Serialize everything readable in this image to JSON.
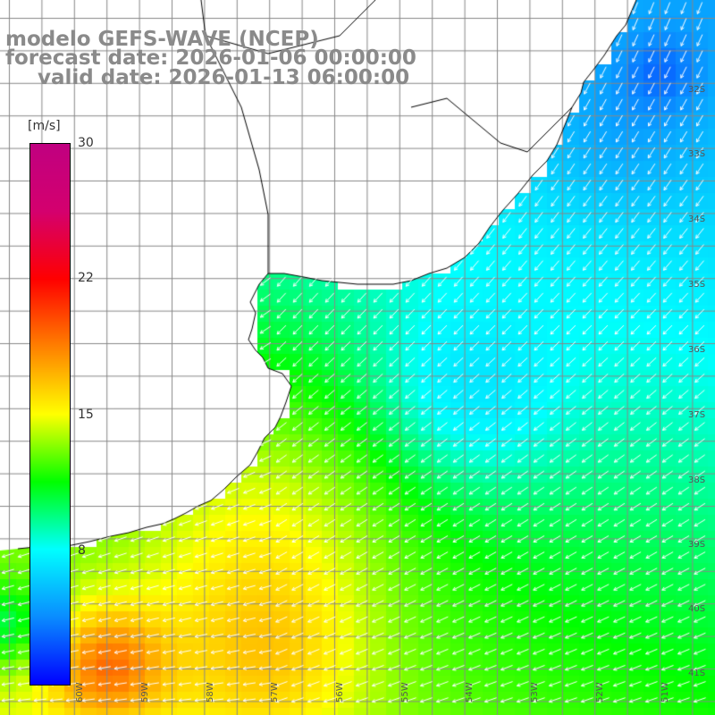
{
  "title": {
    "line1": "modelo GEFS-WAVE (NCEP)",
    "line2": "forecast date: 2026-01-06 00:00:00",
    "line3": "valid date: 2026-01-13 06:00:00"
  },
  "colorbar": {
    "unit": "[m/s]",
    "ticks": [
      {
        "label": "30",
        "value": 30
      },
      {
        "label": "22",
        "value": 22
      },
      {
        "label": "15",
        "value": 15
      },
      {
        "label": "8",
        "value": 8
      }
    ],
    "range": [
      0,
      30
    ],
    "colors": [
      "#0000ff",
      "#0a8cff",
      "#00ffff",
      "#00ff00",
      "#ffff00",
      "#ff8000",
      "#ff0000",
      "#d4006e",
      "#c00080"
    ]
  },
  "map": {
    "lat_labels": [
      "32S",
      "33S",
      "34S",
      "35S",
      "36S",
      "37S",
      "38S",
      "39S",
      "40S",
      "41S"
    ],
    "lon_labels": [
      "60W",
      "59W",
      "58W",
      "57W",
      "56W",
      "55W",
      "54W",
      "53W",
      "52W",
      "51W"
    ],
    "land_color": "#ffffff",
    "grid_color": "#888888"
  }
}
